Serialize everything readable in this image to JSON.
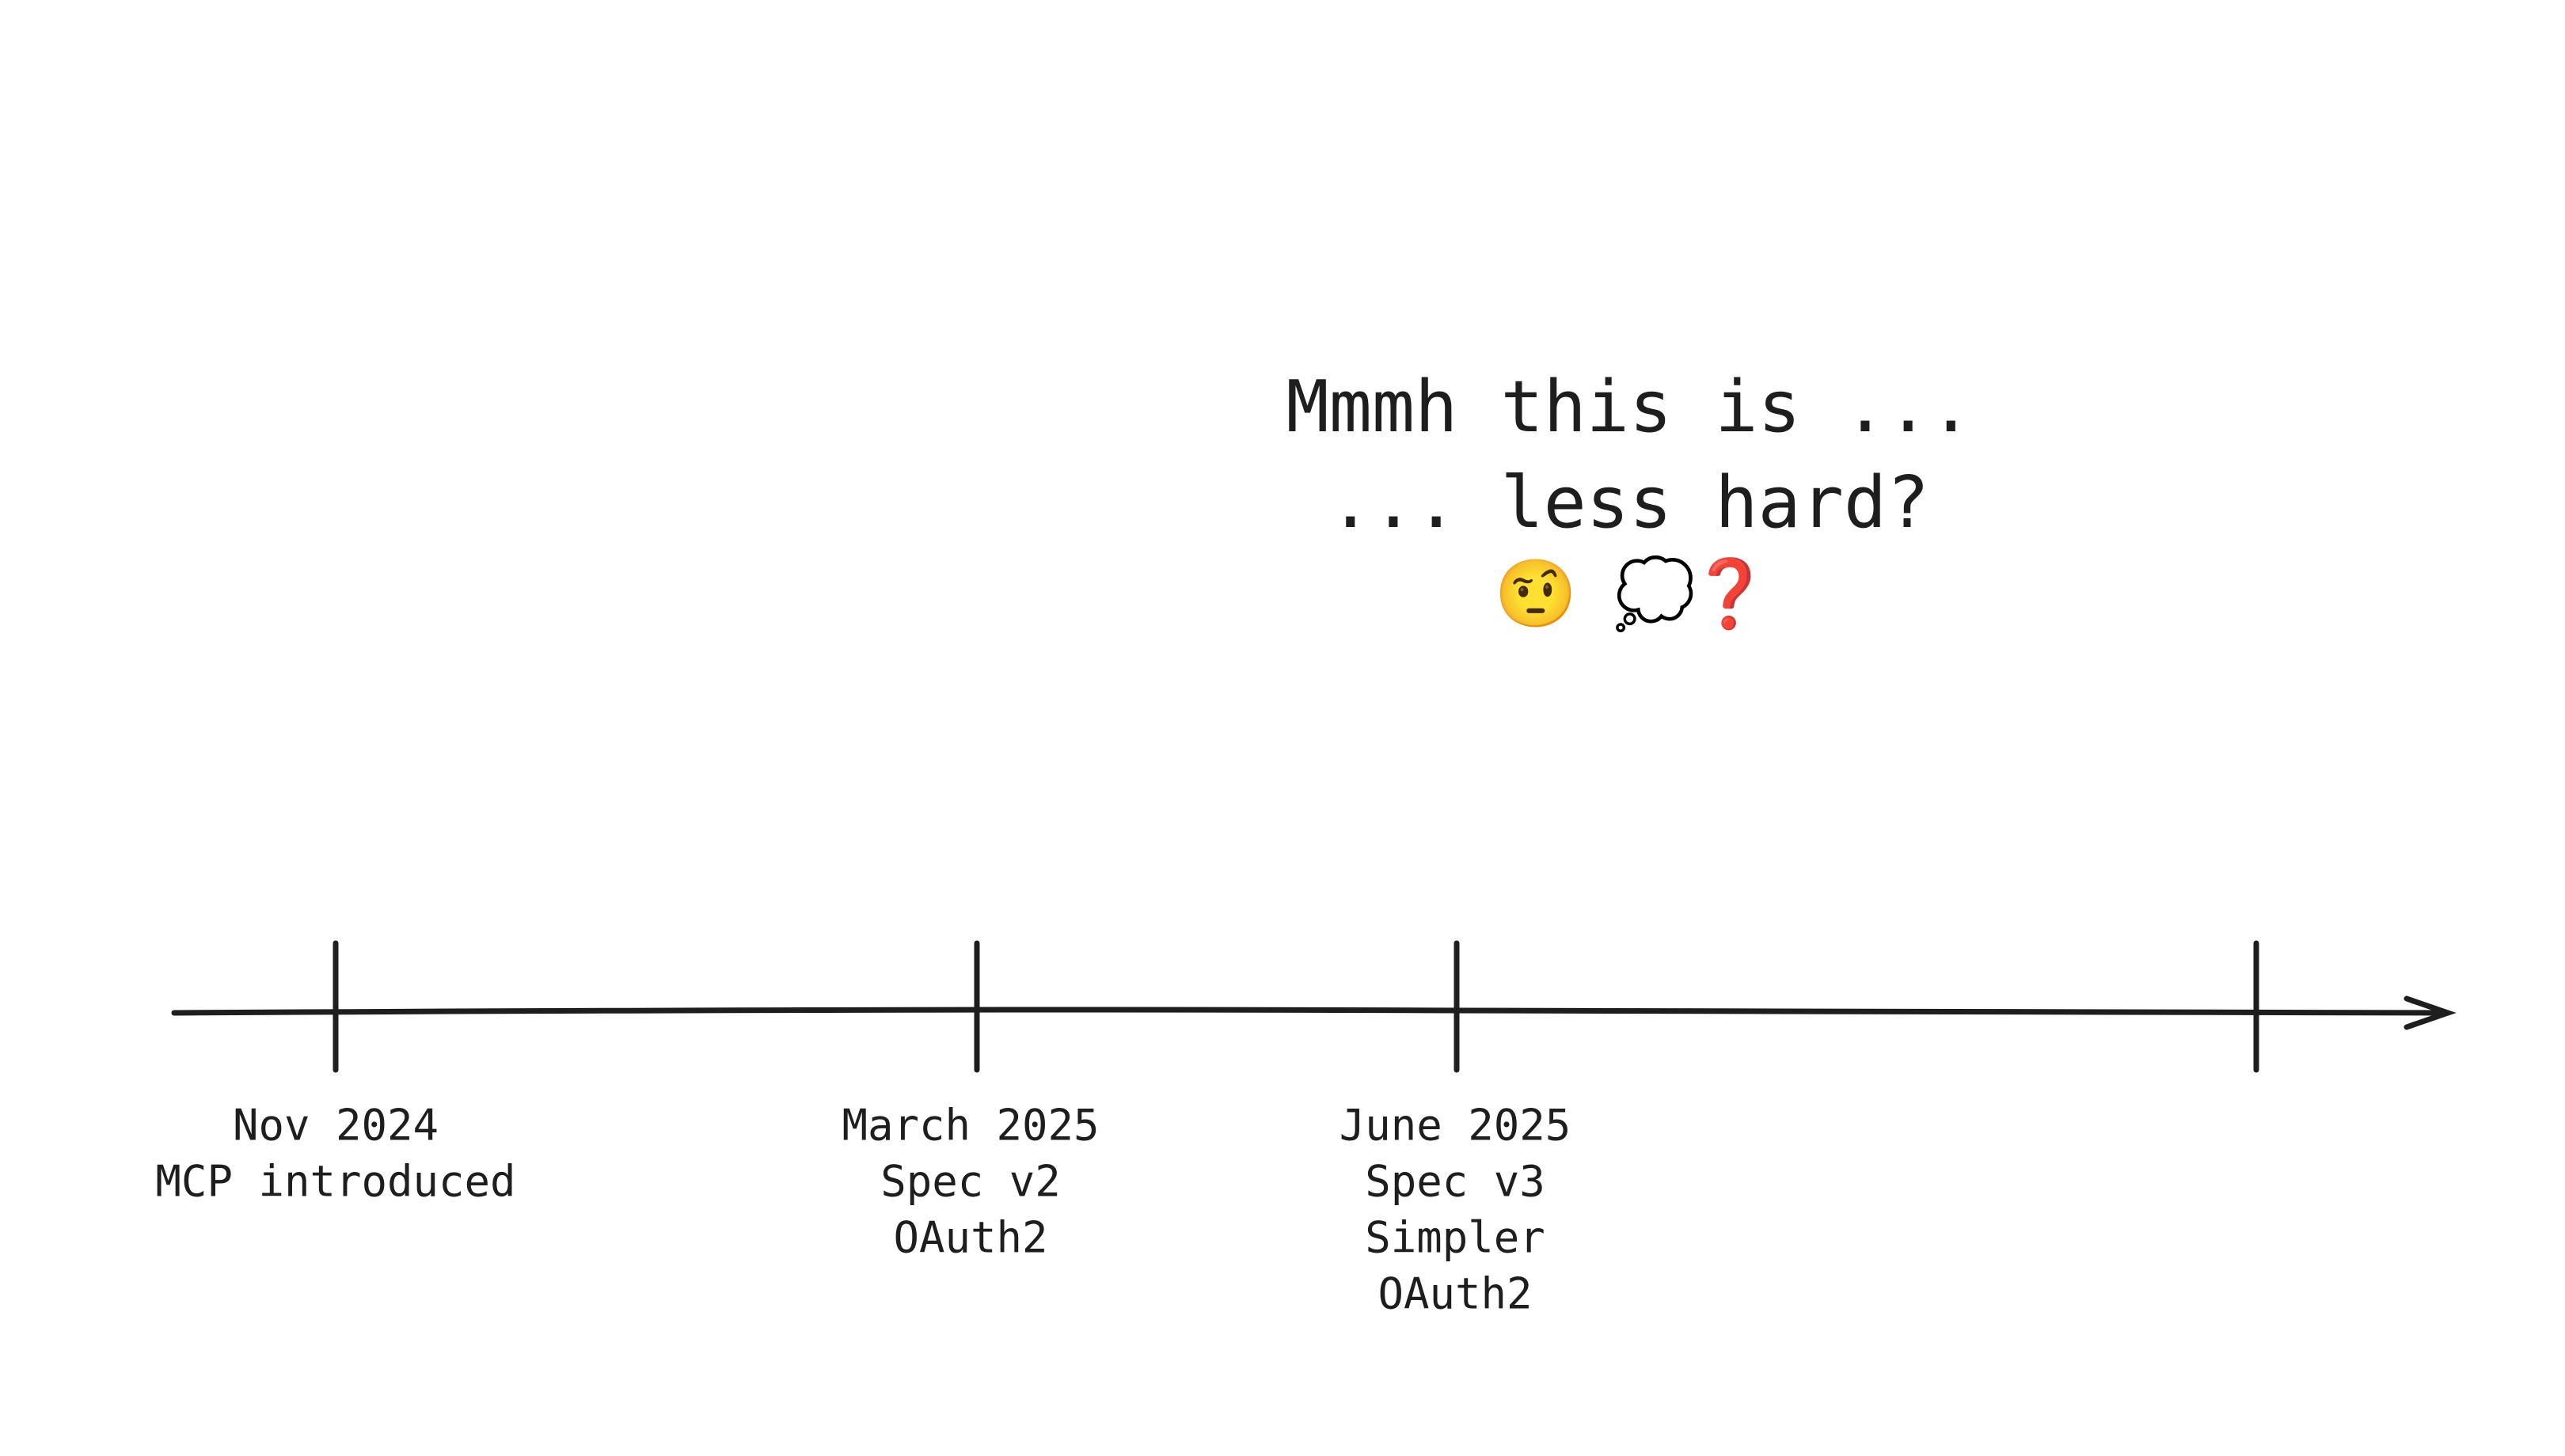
{
  "headline": {
    "lines": [
      "Mmmh this is ...",
      "... less hard?"
    ],
    "emoji": [
      "🤨",
      "💭",
      "❓"
    ]
  },
  "milestones": [
    {
      "lines": [
        "Nov 2024",
        "MCP introduced"
      ]
    },
    {
      "lines": [
        "March 2025",
        "Spec v2",
        "OAuth2"
      ]
    },
    {
      "lines": [
        "June 2025",
        "Spec v3",
        "Simpler",
        "OAuth2"
      ]
    }
  ]
}
